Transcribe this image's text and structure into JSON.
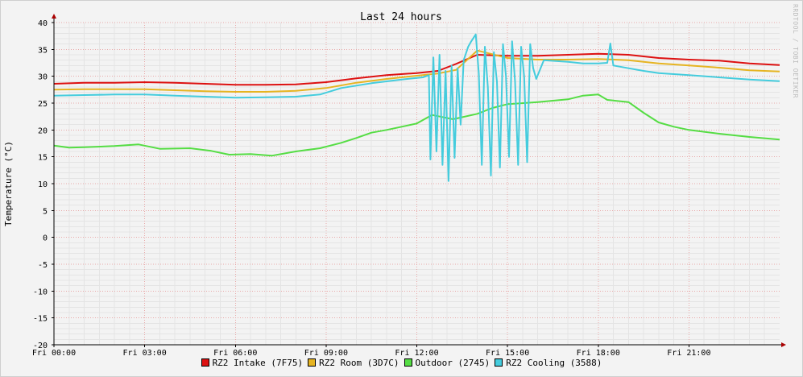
{
  "chart_data": {
    "type": "line",
    "title": "Last 24 hours",
    "ylabel": "Temperature (°C)",
    "watermark": "RRDTOOL / TOBI OETIKER",
    "ylim": [
      -20,
      40
    ],
    "yticks": [
      40,
      35,
      30,
      25,
      20,
      15,
      10,
      5,
      0,
      -5,
      -10,
      -15,
      -20
    ],
    "x_hours_range": [
      0,
      24
    ],
    "xticks": [
      {
        "hour": 0,
        "label": "Fri 00:00"
      },
      {
        "hour": 3,
        "label": "Fri 03:00"
      },
      {
        "hour": 6,
        "label": "Fri 06:00"
      },
      {
        "hour": 9,
        "label": "Fri 09:00"
      },
      {
        "hour": 12,
        "label": "Fri 12:00"
      },
      {
        "hour": 15,
        "label": "Fri 15:00"
      },
      {
        "hour": 18,
        "label": "Fri 18:00"
      },
      {
        "hour": 21,
        "label": "Fri 21:00"
      }
    ],
    "grid": true,
    "legend_position": "bottom",
    "series": [
      {
        "name": "RZ2 Intake (7F75)",
        "color": "#dd1111",
        "points": [
          [
            0,
            28.6
          ],
          [
            1,
            28.8
          ],
          [
            2,
            28.8
          ],
          [
            3,
            28.9
          ],
          [
            4,
            28.8
          ],
          [
            5,
            28.6
          ],
          [
            6,
            28.4
          ],
          [
            7,
            28.4
          ],
          [
            8,
            28.5
          ],
          [
            9,
            28.9
          ],
          [
            10,
            29.6
          ],
          [
            11,
            30.2
          ],
          [
            12,
            30.6
          ],
          [
            12.7,
            31.0
          ],
          [
            13.3,
            32.3
          ],
          [
            14,
            34.0
          ],
          [
            15,
            33.8
          ],
          [
            16,
            33.8
          ],
          [
            17,
            34.0
          ],
          [
            18,
            34.2
          ],
          [
            19,
            34.0
          ],
          [
            20,
            33.4
          ],
          [
            21,
            33.1
          ],
          [
            22,
            32.9
          ],
          [
            23,
            32.4
          ],
          [
            24,
            32.1
          ]
        ]
      },
      {
        "name": "RZ2 Room (3D7C)",
        "color": "#e6b422",
        "points": [
          [
            0,
            27.5
          ],
          [
            1,
            27.6
          ],
          [
            2,
            27.6
          ],
          [
            3,
            27.6
          ],
          [
            4,
            27.4
          ],
          [
            5,
            27.2
          ],
          [
            6,
            27.1
          ],
          [
            7,
            27.1
          ],
          [
            8,
            27.3
          ],
          [
            9,
            27.8
          ],
          [
            10,
            28.8
          ],
          [
            11,
            29.5
          ],
          [
            12,
            30.1
          ],
          [
            12.7,
            30.5
          ],
          [
            13.3,
            31.2
          ],
          [
            14,
            34.8
          ],
          [
            15,
            33.4
          ],
          [
            16,
            33.1
          ],
          [
            17,
            33.1
          ],
          [
            18,
            33.2
          ],
          [
            19,
            33.0
          ],
          [
            20,
            32.4
          ],
          [
            21,
            32.0
          ],
          [
            22,
            31.6
          ],
          [
            23,
            31.1
          ],
          [
            24,
            30.9
          ]
        ]
      },
      {
        "name": "Outdoor (2745)",
        "color": "#55dd44",
        "points": [
          [
            0,
            17.1
          ],
          [
            0.5,
            16.7
          ],
          [
            1,
            16.8
          ],
          [
            2,
            17.0
          ],
          [
            2.8,
            17.3
          ],
          [
            3.5,
            16.5
          ],
          [
            4.5,
            16.6
          ],
          [
            5.2,
            16.1
          ],
          [
            5.8,
            15.4
          ],
          [
            6.5,
            15.5
          ],
          [
            7.2,
            15.2
          ],
          [
            8,
            16.0
          ],
          [
            8.8,
            16.6
          ],
          [
            9.5,
            17.6
          ],
          [
            10,
            18.5
          ],
          [
            10.5,
            19.5
          ],
          [
            11,
            20.0
          ],
          [
            12,
            21.2
          ],
          [
            12.5,
            22.8
          ],
          [
            13.2,
            22.0
          ],
          [
            14,
            23.0
          ],
          [
            14.5,
            24.1
          ],
          [
            15,
            24.8
          ],
          [
            16,
            25.2
          ],
          [
            17,
            25.7
          ],
          [
            17.5,
            26.4
          ],
          [
            18,
            26.6
          ],
          [
            18.3,
            25.6
          ],
          [
            19,
            25.2
          ],
          [
            19.5,
            23.2
          ],
          [
            20,
            21.4
          ],
          [
            20.5,
            20.6
          ],
          [
            21,
            20.0
          ],
          [
            22,
            19.3
          ],
          [
            23,
            18.7
          ],
          [
            24,
            18.2
          ]
        ]
      },
      {
        "name": "RZ2 Cooling (3588)",
        "color": "#44ccdd",
        "points": [
          [
            0,
            26.4
          ],
          [
            1,
            26.5
          ],
          [
            2,
            26.6
          ],
          [
            3,
            26.6
          ],
          [
            4,
            26.4
          ],
          [
            5,
            26.2
          ],
          [
            6,
            26.0
          ],
          [
            7,
            26.1
          ],
          [
            8,
            26.2
          ],
          [
            8.8,
            26.6
          ],
          [
            9.5,
            27.8
          ],
          [
            10.5,
            28.7
          ],
          [
            11.5,
            29.4
          ],
          [
            12.2,
            29.8
          ],
          [
            12.4,
            30.2
          ],
          [
            12.45,
            14.5
          ],
          [
            12.55,
            33.5
          ],
          [
            12.65,
            16.0
          ],
          [
            12.75,
            34.0
          ],
          [
            12.85,
            13.5
          ],
          [
            12.95,
            31.0
          ],
          [
            13.05,
            10.5
          ],
          [
            13.15,
            32.0
          ],
          [
            13.25,
            14.8
          ],
          [
            13.35,
            31.5
          ],
          [
            13.45,
            21.0
          ],
          [
            13.55,
            33.0
          ],
          [
            13.7,
            35.5
          ],
          [
            13.8,
            36.5
          ],
          [
            13.95,
            37.8
          ],
          [
            14.05,
            30.5
          ],
          [
            14.15,
            13.5
          ],
          [
            14.25,
            35.5
          ],
          [
            14.35,
            28.0
          ],
          [
            14.45,
            11.5
          ],
          [
            14.55,
            34.5
          ],
          [
            14.65,
            29.0
          ],
          [
            14.75,
            13.0
          ],
          [
            14.85,
            36.0
          ],
          [
            14.95,
            30.0
          ],
          [
            15.05,
            15.0
          ],
          [
            15.15,
            36.5
          ],
          [
            15.25,
            29.0
          ],
          [
            15.35,
            13.5
          ],
          [
            15.45,
            35.5
          ],
          [
            15.55,
            30.0
          ],
          [
            15.65,
            14.0
          ],
          [
            15.75,
            36.0
          ],
          [
            15.85,
            31.5
          ],
          [
            15.95,
            29.5
          ],
          [
            16.2,
            33.0
          ],
          [
            17,
            32.7
          ],
          [
            17.5,
            32.4
          ],
          [
            18,
            32.4
          ],
          [
            18.3,
            32.5
          ],
          [
            18.4,
            36.1
          ],
          [
            18.5,
            32.0
          ],
          [
            19,
            31.5
          ],
          [
            19.5,
            31.0
          ],
          [
            20,
            30.6
          ],
          [
            21,
            30.2
          ],
          [
            22,
            29.8
          ],
          [
            23,
            29.4
          ],
          [
            24,
            29.1
          ]
        ]
      }
    ]
  }
}
